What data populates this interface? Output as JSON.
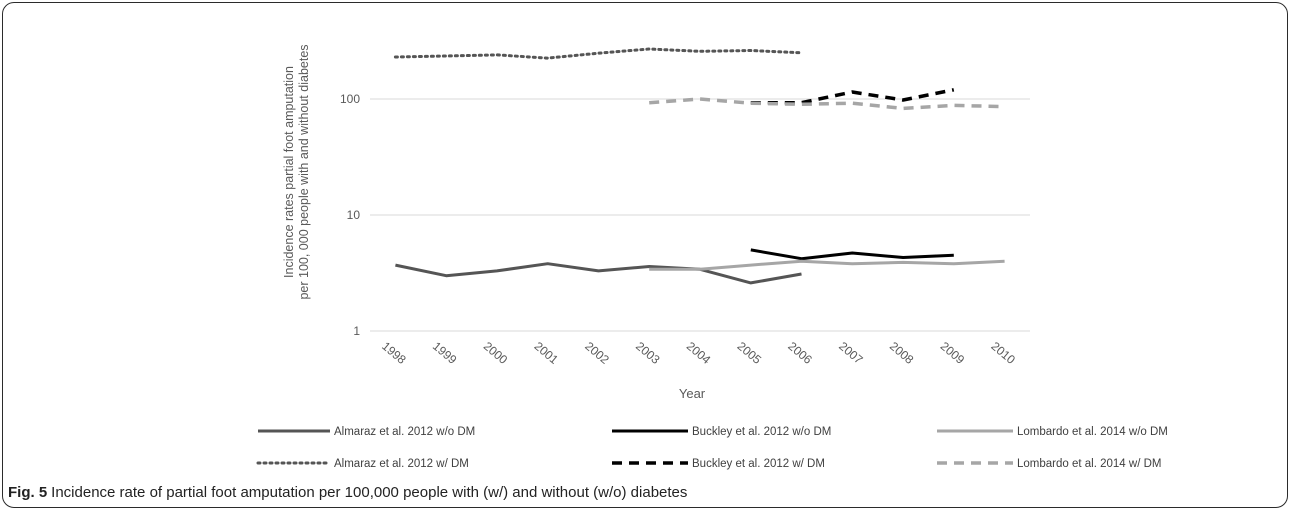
{
  "chart_data": {
    "type": "line",
    "ylabel": "Incidence rates partial foot amputation per 100, 000 people with and without diabetes",
    "xlabel": "Year",
    "yscale": "log",
    "ylim": [
      1,
      300
    ],
    "yticks": [
      {
        "value": 1,
        "label": "1"
      },
      {
        "value": 10,
        "label": "10"
      },
      {
        "value": 100,
        "label": "100"
      }
    ],
    "categories": [
      "1998",
      "1999",
      "2000",
      "2001",
      "2002",
      "2003",
      "2004",
      "2005",
      "2006",
      "2007",
      "2008",
      "2009",
      "2010"
    ],
    "grid": true,
    "legend_position": "bottom",
    "series": [
      {
        "name": "Almaraz et al. 2012 w/o DM",
        "color": "#555555",
        "dash": "solid",
        "values": [
          3.7,
          3.0,
          3.3,
          3.8,
          3.3,
          3.6,
          3.4,
          2.6,
          3.1,
          null,
          null,
          null,
          null
        ]
      },
      {
        "name": "Buckley et al. 2012 w/o DM",
        "color": "#000000",
        "dash": "solid",
        "values": [
          null,
          null,
          null,
          null,
          null,
          null,
          null,
          5.0,
          4.2,
          4.7,
          4.3,
          4.5,
          null
        ]
      },
      {
        "name": "Lombardo et al. 2014 w/o DM",
        "color": "#a6a6a6",
        "dash": "solid",
        "values": [
          null,
          null,
          null,
          null,
          null,
          3.4,
          3.4,
          3.7,
          4.0,
          3.8,
          3.9,
          3.8,
          4.0
        ]
      },
      {
        "name": "Almaraz et al. 2012 w/ DM",
        "color": "#555555",
        "dash": "dot",
        "values": [
          230,
          235,
          240,
          225,
          248,
          270,
          258,
          262,
          250,
          null,
          null,
          null,
          null
        ]
      },
      {
        "name": "Buckley et al. 2012 w/ DM",
        "color": "#000000",
        "dash": "dash",
        "values": [
          null,
          null,
          null,
          null,
          null,
          null,
          null,
          93,
          93,
          115,
          98,
          120,
          null
        ]
      },
      {
        "name": "Lombardo et al. 2014 w/ DM",
        "color": "#a6a6a6",
        "dash": "dash",
        "values": [
          null,
          null,
          null,
          null,
          null,
          93,
          100,
          92,
          90,
          92,
          83,
          88,
          86
        ]
      }
    ]
  },
  "caption": {
    "label": "Fig. 5",
    "text": "Incidence rate of partial foot amputation per 100,000 people with (w/) and without (w/o) diabetes"
  }
}
